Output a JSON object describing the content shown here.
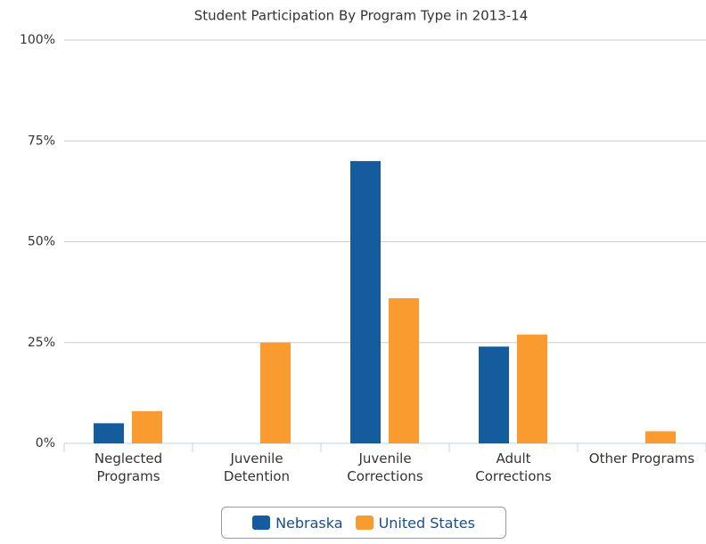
{
  "chart_data": {
    "type": "bar",
    "title": "Student Participation By Program Type in 2013-14",
    "categories": [
      "Neglected Programs",
      "Juvenile Detention",
      "Juvenile Corrections",
      "Adult Corrections",
      "Other Programs"
    ],
    "series": [
      {
        "name": "Nebraska",
        "color": "#145c9e",
        "values": [
          5,
          0,
          70,
          24,
          0
        ]
      },
      {
        "name": "United States",
        "color": "#f99b2f",
        "values": [
          8,
          25,
          36,
          27,
          3
        ]
      }
    ],
    "ylim": [
      0,
      100
    ],
    "yticks": [
      {
        "value": 0,
        "label": "0%"
      },
      {
        "value": 25,
        "label": "25%"
      },
      {
        "value": 50,
        "label": "50%"
      },
      {
        "value": 75,
        "label": "75%"
      },
      {
        "value": 100,
        "label": "100%"
      }
    ],
    "grid": true
  }
}
